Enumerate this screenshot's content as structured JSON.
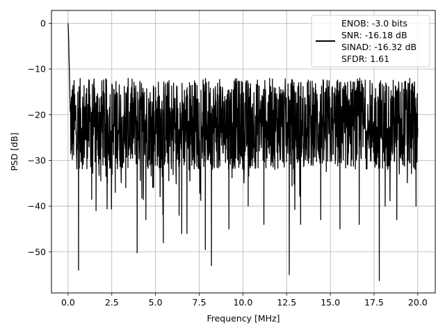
{
  "chart_data": {
    "type": "line",
    "title": "",
    "xlabel": "Frequency [MHz]",
    "ylabel": "PSD [dB]",
    "xlim": [
      -0.95,
      21.0
    ],
    "ylim": [
      -59.0,
      2.8
    ],
    "x_ticks": [
      0.0,
      2.5,
      5.0,
      7.5,
      10.0,
      12.5,
      15.0,
      17.5,
      20.0
    ],
    "x_tick_labels": [
      "0.0",
      "2.5",
      "5.0",
      "7.5",
      "10.0",
      "12.5",
      "15.0",
      "17.5",
      "20.0"
    ],
    "y_ticks": [
      0,
      -10,
      -20,
      -30,
      -40,
      -50
    ],
    "y_tick_labels": [
      "0",
      "−10",
      "−20",
      "−30",
      "−40",
      "−50"
    ],
    "grid": true,
    "legend_position": "upper-right",
    "legend_text": [
      "ENOB: -3.0 bits",
      "SNR: -16.18 dB",
      "SINAD: -16.32 dB",
      "SFDR: 1.61"
    ],
    "series": [
      {
        "color": "#000000",
        "noise_floor_range": [
          -32,
          -12
        ],
        "x": [
          0.0,
          0.03,
          0.06,
          0.1,
          0.6,
          1.35,
          1.6,
          2.25,
          2.7,
          3.3,
          3.95,
          4.45,
          5.45,
          6.35,
          6.5,
          6.8,
          7.85,
          8.2,
          9.2,
          10.3,
          11.2,
          12.65,
          13.3,
          14.45,
          15.55,
          16.65,
          17.8,
          18.8,
          19.9,
          20.0
        ],
        "y": [
          0,
          -3,
          -8,
          -15,
          -54,
          -38.5,
          -41,
          -35,
          -37,
          -36,
          -50.2,
          -43,
          -48,
          -42,
          -46,
          -46,
          -49.5,
          -53,
          -45,
          -40,
          -44,
          -55,
          -44,
          -43,
          -45,
          -44,
          -56.3,
          -43,
          -40,
          -23
        ]
      }
    ]
  }
}
